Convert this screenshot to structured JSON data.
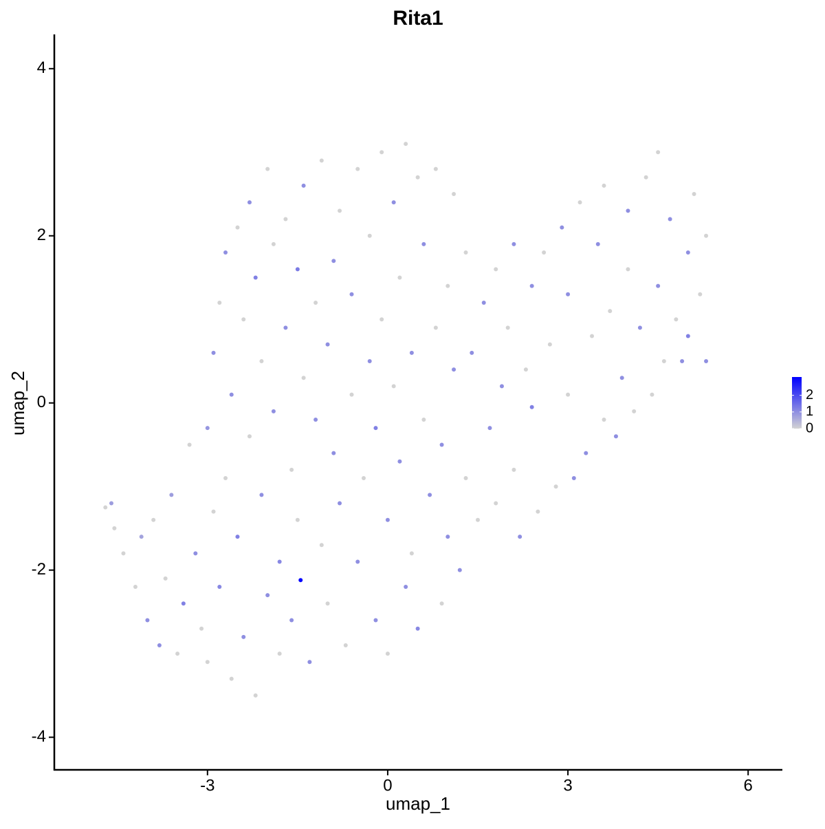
{
  "chart_data": {
    "type": "scatter",
    "title": "Rita1",
    "x_label": "umap_1",
    "y_label": "umap_2",
    "xlim": [
      -5.55,
      6.57
    ],
    "ylim": [
      -4.39,
      4.41
    ],
    "xticks": [
      -3,
      0,
      3,
      6
    ],
    "yticks": [
      -4,
      -2,
      0,
      2,
      4
    ],
    "colorbar": {
      "lim": [
        0,
        3.1
      ],
      "ticks": [
        0,
        1,
        2
      ],
      "colors": [
        "#d3d3d3",
        "#0000ff"
      ]
    },
    "x": [
      -4.7,
      -4.6,
      -4.55,
      -4.4,
      -4.2,
      -4.1,
      -4.0,
      -3.9,
      -3.8,
      -3.7,
      -3.6,
      -3.5,
      -3.4,
      -3.3,
      -3.2,
      -3.1,
      -3.0,
      -3.0,
      -2.9,
      -2.9,
      -2.8,
      -2.8,
      -2.7,
      -2.7,
      -2.6,
      -2.6,
      -2.5,
      -2.5,
      -2.4,
      -2.4,
      -2.3,
      -2.3,
      -2.2,
      -2.2,
      -2.1,
      -2.1,
      -2.0,
      -2.0,
      -1.9,
      -1.9,
      -1.8,
      -1.8,
      -1.7,
      -1.7,
      -1.6,
      -1.6,
      -1.5,
      -1.5,
      -1.45,
      -1.4,
      -1.4,
      -1.3,
      -1.2,
      -1.2,
      -1.1,
      -1.1,
      -1.0,
      -1.0,
      -0.9,
      -0.9,
      -0.8,
      -0.8,
      -0.7,
      -0.6,
      -0.6,
      -0.5,
      -0.5,
      -0.4,
      -0.3,
      -0.3,
      -0.2,
      -0.2,
      -0.1,
      -0.1,
      0.0,
      0.0,
      0.1,
      0.1,
      0.2,
      0.2,
      0.3,
      0.3,
      0.4,
      0.4,
      0.5,
      0.5,
      0.6,
      0.6,
      0.7,
      0.8,
      0.8,
      0.9,
      0.9,
      1.0,
      1.0,
      1.1,
      1.1,
      1.2,
      1.3,
      1.3,
      1.4,
      1.5,
      1.6,
      1.7,
      1.8,
      1.8,
      1.9,
      2.0,
      2.1,
      2.1,
      2.2,
      2.3,
      2.4,
      2.4,
      2.5,
      2.6,
      2.7,
      2.8,
      2.9,
      3.0,
      3.0,
      3.1,
      3.2,
      3.3,
      3.4,
      3.5,
      3.6,
      3.6,
      3.7,
      3.8,
      3.9,
      4.0,
      4.0,
      4.1,
      4.2,
      4.3,
      4.4,
      4.5,
      4.5,
      4.6,
      4.7,
      4.8,
      4.9,
      5.0,
      5.0,
      5.1,
      5.2,
      5.3,
      5.3
    ],
    "y": [
      -1.25,
      -1.2,
      -1.5,
      -1.8,
      -2.2,
      -1.6,
      -2.6,
      -1.4,
      -2.9,
      -2.1,
      -1.1,
      -3.0,
      -2.4,
      -0.5,
      -1.8,
      -2.7,
      -0.3,
      -3.1,
      0.6,
      -1.3,
      1.2,
      -2.2,
      1.8,
      -0.9,
      0.1,
      -3.3,
      2.1,
      -1.6,
      1.0,
      -2.8,
      -0.4,
      2.4,
      -3.5,
      1.5,
      -1.1,
      0.5,
      2.8,
      -2.3,
      -0.1,
      1.9,
      -3.0,
      -1.9,
      0.9,
      2.2,
      -0.8,
      -2.6,
      1.6,
      -1.4,
      -2.12,
      0.3,
      2.6,
      -3.1,
      -0.2,
      1.2,
      2.9,
      -1.7,
      0.7,
      -2.4,
      1.7,
      -0.6,
      2.3,
      -1.2,
      -2.9,
      0.1,
      1.3,
      2.8,
      -1.9,
      -0.9,
      0.5,
      2.0,
      -2.6,
      -0.3,
      1.0,
      3.0,
      -1.4,
      -3.0,
      0.2,
      2.4,
      -0.7,
      1.5,
      -2.2,
      3.1,
      0.6,
      -1.8,
      2.7,
      -2.7,
      -0.2,
      1.9,
      -1.1,
      0.9,
      2.8,
      -2.4,
      -0.5,
      1.4,
      -1.6,
      0.4,
      2.5,
      -2.0,
      -0.9,
      1.8,
      0.6,
      -1.4,
      1.2,
      -0.3,
      1.6,
      -1.2,
      0.2,
      0.9,
      1.9,
      -0.8,
      -1.6,
      0.4,
      1.4,
      -0.05,
      -1.3,
      1.8,
      0.7,
      -1.0,
      2.1,
      0.1,
      1.3,
      -0.9,
      2.4,
      -0.6,
      0.8,
      1.9,
      -0.2,
      2.6,
      1.1,
      -0.4,
      0.3,
      1.6,
      2.3,
      -0.1,
      0.9,
      2.7,
      0.1,
      1.4,
      3.0,
      0.5,
      2.2,
      1.0,
      0.5,
      1.8,
      0.8,
      2.5,
      1.3,
      2.0,
      0.5
    ],
    "values": [
      0,
      0.8,
      0,
      0,
      0,
      0.7,
      1,
      0,
      1,
      0,
      0.8,
      0,
      1.2,
      0,
      1,
      0,
      0.9,
      0,
      1,
      0,
      0,
      1.1,
      1,
      0,
      1,
      0,
      0,
      1.2,
      0,
      1,
      0,
      1,
      0,
      1.2,
      1,
      0,
      0,
      1,
      1,
      0,
      0,
      1.1,
      1,
      0,
      0,
      1,
      1.3,
      0,
      3.0,
      0,
      1,
      1,
      1,
      0,
      0,
      0,
      1,
      0,
      1,
      1,
      0,
      1,
      0,
      0,
      1,
      0,
      1,
      0,
      1,
      0,
      1,
      1.2,
      0,
      0,
      1,
      0,
      0,
      1,
      1,
      0,
      1,
      0,
      1,
      0,
      0,
      1.1,
      0,
      1,
      1,
      0,
      0,
      0,
      1,
      0,
      1,
      1,
      0,
      1,
      0,
      0,
      1,
      0,
      1,
      1,
      0,
      0,
      1,
      0,
      1,
      0,
      1,
      0,
      1,
      1.2,
      0,
      0,
      0,
      0,
      1,
      0,
      1,
      1,
      0,
      1,
      0,
      1,
      0,
      0,
      0,
      1,
      1,
      0,
      1,
      0,
      1,
      0,
      0,
      1,
      0,
      0,
      1,
      0,
      1,
      1,
      1.2,
      0,
      0,
      0,
      1
    ]
  }
}
